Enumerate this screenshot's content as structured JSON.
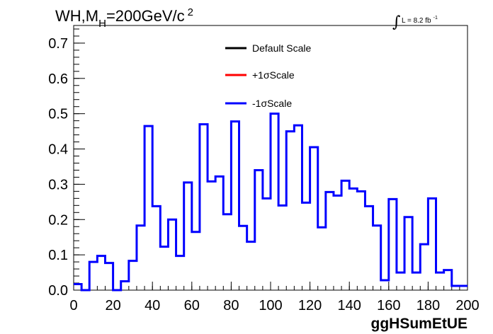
{
  "chart_data": {
    "type": "line",
    "title_main": "WH,M",
    "title_sub": "H",
    "title_rest": "=200GeV/c",
    "title_sup": "2",
    "lumi_integral": "∫",
    "lumi_text": "L = 8.2 fb",
    "lumi_sup": "-1",
    "xlabel": "ggHSumEtUE",
    "xlim": [
      0,
      200
    ],
    "ylim": [
      0,
      0.75
    ],
    "x_ticks": [
      "0",
      "20",
      "40",
      "60",
      "80",
      "100",
      "120",
      "140",
      "160",
      "180",
      "200"
    ],
    "y_ticks": [
      "0.0",
      "0.1",
      "0.2",
      "0.3",
      "0.4",
      "0.5",
      "0.6",
      "0.7"
    ],
    "legend": [
      {
        "label": "Default Scale",
        "color": "#000000"
      },
      {
        "label": "+1σScale",
        "color": "#ff0000"
      },
      {
        "label": "-1σScale",
        "color": "#0000ff"
      }
    ],
    "bin_edges": [
      0,
      4,
      8,
      12,
      16,
      20,
      24,
      28,
      32,
      36,
      40,
      44,
      48,
      52,
      56,
      60,
      64,
      68,
      72,
      76,
      80,
      84,
      88,
      92,
      96,
      100,
      104,
      108,
      112,
      116,
      120,
      124,
      128,
      132,
      136,
      140,
      144,
      148,
      152,
      156,
      160,
      164,
      168,
      172,
      176,
      180,
      184,
      188,
      192,
      196,
      200
    ],
    "series": [
      {
        "name": "-1σScale",
        "color": "#0000ff",
        "values": [
          0.017,
          0.0,
          0.08,
          0.097,
          0.077,
          0.0,
          0.025,
          0.083,
          0.183,
          0.465,
          0.238,
          0.123,
          0.2,
          0.097,
          0.305,
          0.165,
          0.47,
          0.308,
          0.322,
          0.215,
          0.478,
          0.182,
          0.137,
          0.34,
          0.26,
          0.5,
          0.24,
          0.45,
          0.467,
          0.248,
          0.405,
          0.178,
          0.278,
          0.268,
          0.31,
          0.288,
          0.28,
          0.238,
          0.183,
          0.028,
          0.258,
          0.05,
          0.207,
          0.05,
          0.13,
          0.26,
          0.05,
          0.057,
          0.012,
          0.012
        ]
      }
    ]
  }
}
